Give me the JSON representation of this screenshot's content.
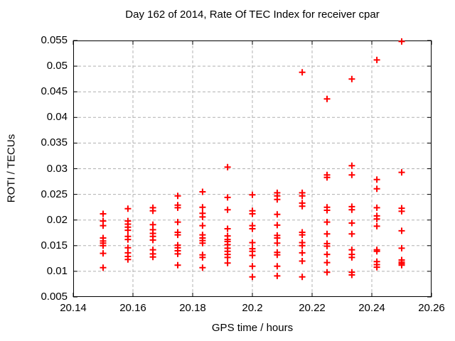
{
  "chart_data": {
    "type": "scatter",
    "title": "Day 162 of 2014, Rate Of TEC Index for receiver cpar",
    "xlabel": "GPS time / hours",
    "ylabel": "ROTI / TECUs",
    "xlim": [
      20.14,
      20.26
    ],
    "ylim": [
      0.005,
      0.055
    ],
    "grid": true,
    "legend": "none",
    "marker": "plus",
    "colors": {
      "marker": "#ff0000",
      "grid": "#b0b0b0",
      "axis": "#000000",
      "text": "#000000",
      "background": "#ffffff"
    },
    "xticks": {
      "values": [
        20.14,
        20.16,
        20.18,
        20.2,
        20.22,
        20.24,
        20.26
      ],
      "labels": [
        "20.14",
        "20.16",
        "20.18",
        "20.2",
        "20.22",
        "20.24",
        "20.26"
      ]
    },
    "yticks": {
      "values": [
        0.005,
        0.01,
        0.015,
        0.02,
        0.025,
        0.03,
        0.035,
        0.04,
        0.045,
        0.05,
        0.055
      ],
      "labels": [
        "0.005",
        "0.01",
        "0.015",
        "0.02",
        "0.025",
        "0.03",
        "0.035",
        "0.04",
        "0.045",
        "0.05",
        "0.055"
      ]
    },
    "series": [
      {
        "name": "ROTI",
        "points": [
          [
            20.15,
            0.0212
          ],
          [
            20.15,
            0.0198
          ],
          [
            20.15,
            0.0189
          ],
          [
            20.15,
            0.0165
          ],
          [
            20.15,
            0.0159
          ],
          [
            20.15,
            0.0155
          ],
          [
            20.15,
            0.015
          ],
          [
            20.15,
            0.0135
          ],
          [
            20.15,
            0.0107
          ],
          [
            20.1583,
            0.0222
          ],
          [
            20.1583,
            0.0198
          ],
          [
            20.1583,
            0.0192
          ],
          [
            20.1583,
            0.0186
          ],
          [
            20.1583,
            0.018
          ],
          [
            20.1583,
            0.0168
          ],
          [
            20.1583,
            0.0162
          ],
          [
            20.1583,
            0.0146
          ],
          [
            20.1583,
            0.0136
          ],
          [
            20.1583,
            0.0129
          ],
          [
            20.1583,
            0.0123
          ],
          [
            20.1667,
            0.0224
          ],
          [
            20.1667,
            0.0218
          ],
          [
            20.1667,
            0.0191
          ],
          [
            20.1667,
            0.0181
          ],
          [
            20.1667,
            0.0174
          ],
          [
            20.1667,
            0.0168
          ],
          [
            20.1667,
            0.0161
          ],
          [
            20.1667,
            0.0142
          ],
          [
            20.1667,
            0.0134
          ],
          [
            20.1667,
            0.0128
          ],
          [
            20.175,
            0.0247
          ],
          [
            20.175,
            0.0229
          ],
          [
            20.175,
            0.0224
          ],
          [
            20.175,
            0.0196
          ],
          [
            20.175,
            0.0176
          ],
          [
            20.175,
            0.0171
          ],
          [
            20.175,
            0.0151
          ],
          [
            20.175,
            0.0146
          ],
          [
            20.175,
            0.014
          ],
          [
            20.175,
            0.0134
          ],
          [
            20.175,
            0.0112
          ],
          [
            20.1833,
            0.0255
          ],
          [
            20.1833,
            0.0225
          ],
          [
            20.1833,
            0.0213
          ],
          [
            20.1833,
            0.0206
          ],
          [
            20.1833,
            0.0189
          ],
          [
            20.1833,
            0.0171
          ],
          [
            20.1833,
            0.0165
          ],
          [
            20.1833,
            0.016
          ],
          [
            20.1833,
            0.0155
          ],
          [
            20.1833,
            0.0132
          ],
          [
            20.1833,
            0.0127
          ],
          [
            20.1833,
            0.0107
          ],
          [
            20.1917,
            0.0303
          ],
          [
            20.1917,
            0.0244
          ],
          [
            20.1917,
            0.022
          ],
          [
            20.1917,
            0.0183
          ],
          [
            20.1917,
            0.0169
          ],
          [
            20.1917,
            0.0162
          ],
          [
            20.1917,
            0.0158
          ],
          [
            20.1917,
            0.0152
          ],
          [
            20.1917,
            0.0145
          ],
          [
            20.1917,
            0.0139
          ],
          [
            20.1917,
            0.0133
          ],
          [
            20.1917,
            0.0127
          ],
          [
            20.1917,
            0.0116
          ],
          [
            20.2,
            0.0249
          ],
          [
            20.2,
            0.0218
          ],
          [
            20.2,
            0.0212
          ],
          [
            20.2,
            0.0189
          ],
          [
            20.2,
            0.0183
          ],
          [
            20.2,
            0.0156
          ],
          [
            20.2,
            0.0144
          ],
          [
            20.2,
            0.0139
          ],
          [
            20.2,
            0.0131
          ],
          [
            20.2,
            0.011
          ],
          [
            20.2,
            0.0089
          ],
          [
            20.2083,
            0.0253
          ],
          [
            20.2083,
            0.0247
          ],
          [
            20.2083,
            0.024
          ],
          [
            20.2083,
            0.0211
          ],
          [
            20.2083,
            0.019
          ],
          [
            20.2083,
            0.017
          ],
          [
            20.2083,
            0.0165
          ],
          [
            20.2083,
            0.0155
          ],
          [
            20.2083,
            0.0137
          ],
          [
            20.2083,
            0.0132
          ],
          [
            20.2083,
            0.011
          ],
          [
            20.2083,
            0.0091
          ],
          [
            20.2167,
            0.0488
          ],
          [
            20.2167,
            0.0253
          ],
          [
            20.2167,
            0.0247
          ],
          [
            20.2167,
            0.0233
          ],
          [
            20.2167,
            0.0227
          ],
          [
            20.2167,
            0.0176
          ],
          [
            20.2167,
            0.0171
          ],
          [
            20.2167,
            0.0156
          ],
          [
            20.2167,
            0.015
          ],
          [
            20.2167,
            0.0136
          ],
          [
            20.2167,
            0.012
          ],
          [
            20.2167,
            0.0089
          ],
          [
            20.225,
            0.0436
          ],
          [
            20.225,
            0.0288
          ],
          [
            20.225,
            0.0283
          ],
          [
            20.225,
            0.0225
          ],
          [
            20.225,
            0.0219
          ],
          [
            20.225,
            0.0196
          ],
          [
            20.225,
            0.0173
          ],
          [
            20.225,
            0.0154
          ],
          [
            20.225,
            0.0149
          ],
          [
            20.225,
            0.0133
          ],
          [
            20.225,
            0.0117
          ],
          [
            20.225,
            0.0098
          ],
          [
            20.2333,
            0.0475
          ],
          [
            20.2333,
            0.0306
          ],
          [
            20.2333,
            0.0288
          ],
          [
            20.2333,
            0.0226
          ],
          [
            20.2333,
            0.022
          ],
          [
            20.2333,
            0.0194
          ],
          [
            20.2333,
            0.0173
          ],
          [
            20.2333,
            0.0142
          ],
          [
            20.2333,
            0.0133
          ],
          [
            20.2333,
            0.0127
          ],
          [
            20.2333,
            0.0098
          ],
          [
            20.2333,
            0.0093
          ],
          [
            20.2417,
            0.0512
          ],
          [
            20.2417,
            0.0279
          ],
          [
            20.2417,
            0.0261
          ],
          [
            20.2417,
            0.0224
          ],
          [
            20.2417,
            0.0208
          ],
          [
            20.2417,
            0.0202
          ],
          [
            20.2417,
            0.0188
          ],
          [
            20.2417,
            0.0142
          ],
          [
            20.2417,
            0.0139
          ],
          [
            20.2417,
            0.0119
          ],
          [
            20.2417,
            0.0113
          ],
          [
            20.2417,
            0.0108
          ],
          [
            20.25,
            0.0548
          ],
          [
            20.25,
            0.0293
          ],
          [
            20.25,
            0.0223
          ],
          [
            20.25,
            0.0217
          ],
          [
            20.25,
            0.0179
          ],
          [
            20.25,
            0.0145
          ],
          [
            20.25,
            0.0122
          ],
          [
            20.25,
            0.0118
          ],
          [
            20.25,
            0.0115
          ],
          [
            20.25,
            0.0112
          ]
        ]
      }
    ]
  }
}
